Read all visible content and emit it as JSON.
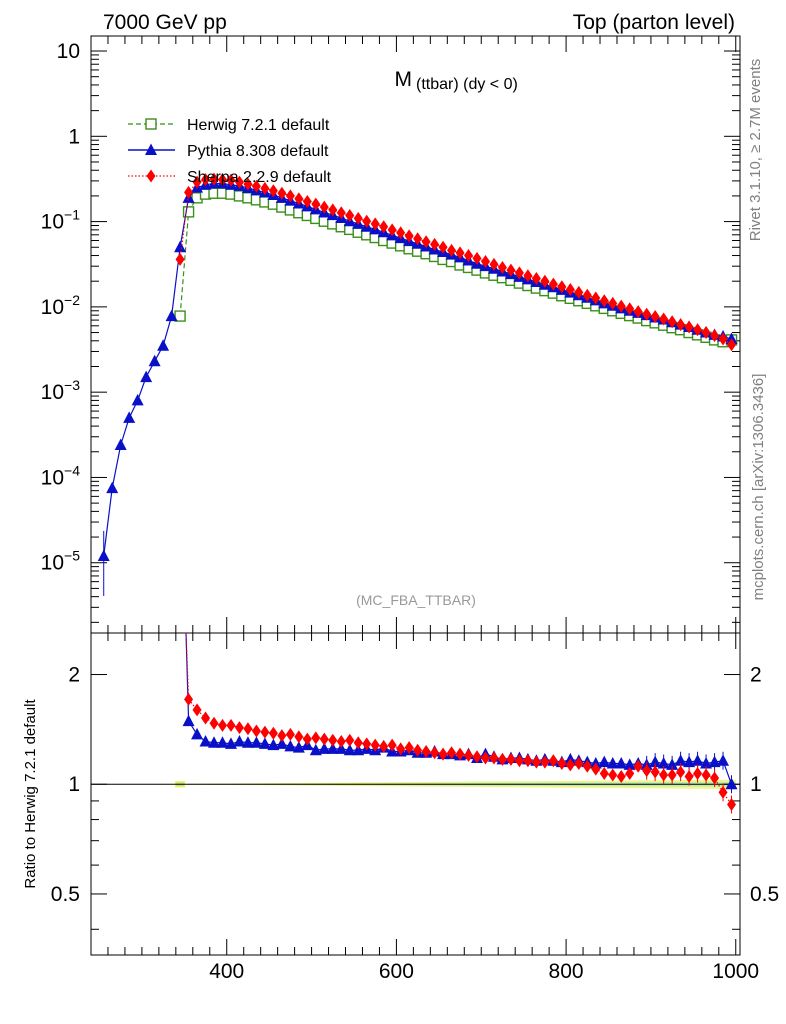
{
  "header": {
    "left": "7000 GeV pp",
    "right": "Top (parton level)"
  },
  "side_labels": {
    "rivet": "Rivet 3.1.10, ≥ 2.7M events",
    "mcplots": "mcplots.cern.ch [arXiv:1306.3436]"
  },
  "chart_data": [
    {
      "type": "line",
      "title_main": "M",
      "title_sub": "(ttbar)  (dy < 0)",
      "watermark": "(MC_FBA_TTBAR)",
      "xlabel": "",
      "ylabel": "",
      "xlim": [
        240,
        1005
      ],
      "ylim": [
        1.5e-06,
        15
      ],
      "yscale": "log",
      "y_tick_labels": [
        "10^-5",
        "10^-4",
        "10^-3",
        "10^-2",
        "10^-1",
        "1",
        "10"
      ],
      "legend_position": "top-left",
      "series": [
        {
          "name": "Herwig 7.2.1 default",
          "color": "#3a8f1a",
          "marker": "open-square",
          "x": [
            345,
            355,
            365,
            375,
            385,
            395,
            405,
            415,
            425,
            435,
            445,
            455,
            465,
            475,
            485,
            495,
            505,
            515,
            525,
            535,
            545,
            555,
            565,
            575,
            585,
            595,
            605,
            615,
            625,
            635,
            645,
            655,
            665,
            675,
            685,
            695,
            705,
            715,
            725,
            735,
            745,
            755,
            765,
            775,
            785,
            795,
            805,
            815,
            825,
            835,
            845,
            855,
            865,
            875,
            885,
            895,
            905,
            915,
            925,
            935,
            945,
            955,
            965,
            975,
            985,
            995
          ],
          "y": [
            0.0078,
            0.13,
            0.19,
            0.21,
            0.215,
            0.215,
            0.21,
            0.2,
            0.19,
            0.18,
            0.17,
            0.16,
            0.148,
            0.137,
            0.127,
            0.118,
            0.109,
            0.101,
            0.094,
            0.087,
            0.081,
            0.075,
            0.07,
            0.065,
            0.06,
            0.056,
            0.052,
            0.048,
            0.045,
            0.042,
            0.039,
            0.036,
            0.034,
            0.031,
            0.029,
            0.027,
            0.025,
            0.0235,
            0.022,
            0.0205,
            0.019,
            0.0178,
            0.0166,
            0.0155,
            0.0145,
            0.0135,
            0.0126,
            0.0118,
            0.011,
            0.0103,
            0.0096,
            0.009,
            0.0084,
            0.0079,
            0.0074,
            0.0069,
            0.0065,
            0.0061,
            0.0057,
            0.0054,
            0.005,
            0.0047,
            0.0044,
            0.0041,
            0.0039,
            0.0041
          ]
        },
        {
          "name": "Pythia 8.308 default",
          "color": "#0a10c8",
          "marker": "filled-triangle",
          "x": [
            255,
            265,
            275,
            285,
            295,
            305,
            315,
            325,
            335,
            345,
            355,
            365,
            375,
            385,
            395,
            405,
            415,
            425,
            435,
            445,
            455,
            465,
            475,
            485,
            495,
            505,
            515,
            525,
            535,
            545,
            555,
            565,
            575,
            585,
            595,
            605,
            615,
            625,
            635,
            645,
            655,
            665,
            675,
            685,
            695,
            705,
            715,
            725,
            735,
            745,
            755,
            765,
            775,
            785,
            795,
            805,
            815,
            825,
            835,
            845,
            855,
            865,
            875,
            885,
            895,
            905,
            915,
            925,
            935,
            945,
            955,
            965,
            975,
            985,
            995
          ],
          "y": [
            1.2e-05,
            7.5e-05,
            0.00024,
            0.0005,
            0.0008,
            0.0015,
            0.0023,
            0.0035,
            0.0078,
            0.05,
            0.19,
            0.25,
            0.27,
            0.28,
            0.28,
            0.27,
            0.262,
            0.248,
            0.233,
            0.22,
            0.205,
            0.19,
            0.176,
            0.163,
            0.151,
            0.139,
            0.128,
            0.119,
            0.11,
            0.101,
            0.094,
            0.087,
            0.081,
            0.075,
            0.069,
            0.064,
            0.059,
            0.055,
            0.051,
            0.047,
            0.044,
            0.041,
            0.038,
            0.035,
            0.032,
            0.03,
            0.028,
            0.026,
            0.0242,
            0.0225,
            0.021,
            0.0196,
            0.0182,
            0.017,
            0.0158,
            0.0147,
            0.0137,
            0.0128,
            0.0119,
            0.011,
            0.0103,
            0.0096,
            0.009,
            0.0085,
            0.008,
            0.0075,
            0.0071,
            0.0066,
            0.0062,
            0.0058,
            0.0054,
            0.005,
            0.0047,
            0.0045,
            0.0042
          ]
        },
        {
          "name": "Sherpa 2.2.9 default",
          "color": "#ff0000",
          "marker": "filled-diamond",
          "x": [
            345,
            355,
            365,
            375,
            385,
            395,
            405,
            415,
            425,
            435,
            445,
            455,
            465,
            475,
            485,
            495,
            505,
            515,
            525,
            535,
            545,
            555,
            565,
            575,
            585,
            595,
            605,
            615,
            625,
            635,
            645,
            655,
            665,
            675,
            685,
            695,
            705,
            715,
            725,
            735,
            745,
            755,
            765,
            775,
            785,
            795,
            805,
            815,
            825,
            835,
            845,
            855,
            865,
            875,
            885,
            895,
            905,
            915,
            925,
            935,
            945,
            955,
            965,
            975,
            985,
            995
          ],
          "y": [
            0.036,
            0.22,
            0.29,
            0.31,
            0.315,
            0.31,
            0.305,
            0.29,
            0.275,
            0.26,
            0.245,
            0.23,
            0.215,
            0.2,
            0.185,
            0.172,
            0.16,
            0.148,
            0.137,
            0.127,
            0.118,
            0.109,
            0.101,
            0.094,
            0.087,
            0.08,
            0.074,
            0.068,
            0.063,
            0.058,
            0.054,
            0.05,
            0.046,
            0.043,
            0.04,
            0.037,
            0.034,
            0.0315,
            0.029,
            0.027,
            0.025,
            0.0232,
            0.0215,
            0.02,
            0.0185,
            0.0172,
            0.016,
            0.0148,
            0.0137,
            0.0127,
            0.0118,
            0.011,
            0.0102,
            0.0095,
            0.0088,
            0.0082,
            0.0077,
            0.0072,
            0.0067,
            0.0062,
            0.0058,
            0.0054,
            0.005,
            0.0046,
            0.0042,
            0.0036
          ]
        }
      ]
    },
    {
      "type": "line",
      "ylabel": "Ratio to Herwig 7.2.1 default",
      "xlim": [
        240,
        1005
      ],
      "ylim": [
        0.34,
        2.6
      ],
      "yscale": "log",
      "x_tick_labels": [
        "400",
        "600",
        "800",
        "1000"
      ],
      "y_tick_labels": [
        "0.5",
        "1",
        "2"
      ],
      "reference_band": "Herwig 7.2.1 default",
      "series": [
        {
          "name": "Pythia 8.308 default",
          "color": "#0a10c8",
          "marker": "filled-triangle",
          "x": [
            355,
            365,
            375,
            385,
            395,
            405,
            415,
            425,
            435,
            445,
            455,
            465,
            475,
            485,
            495,
            505,
            515,
            525,
            535,
            545,
            555,
            565,
            575,
            585,
            595,
            605,
            615,
            625,
            635,
            645,
            655,
            665,
            675,
            685,
            695,
            705,
            715,
            725,
            735,
            745,
            755,
            765,
            775,
            785,
            795,
            805,
            815,
            825,
            835,
            845,
            855,
            865,
            875,
            885,
            895,
            905,
            915,
            925,
            935,
            945,
            955,
            965,
            975,
            985,
            995
          ],
          "y": [
            1.49,
            1.37,
            1.31,
            1.3,
            1.3,
            1.29,
            1.31,
            1.3,
            1.3,
            1.29,
            1.28,
            1.29,
            1.27,
            1.26,
            1.28,
            1.24,
            1.25,
            1.25,
            1.25,
            1.24,
            1.24,
            1.25,
            1.24,
            1.26,
            1.23,
            1.23,
            1.24,
            1.22,
            1.22,
            1.23,
            1.21,
            1.21,
            1.2,
            1.21,
            1.18,
            1.21,
            1.19,
            1.17,
            1.18,
            1.18,
            1.17,
            1.16,
            1.17,
            1.16,
            1.15,
            1.17,
            1.16,
            1.15,
            1.14,
            1.15,
            1.14,
            1.14,
            1.13,
            1.14,
            1.13,
            1.15,
            1.14,
            1.13,
            1.16,
            1.15,
            1.16,
            1.14,
            1.15,
            1.16,
            1.0
          ]
        },
        {
          "name": "Sherpa 2.2.9 default",
          "color": "#ff0000",
          "marker": "filled-diamond",
          "x": [
            355,
            365,
            375,
            385,
            395,
            405,
            415,
            425,
            435,
            445,
            455,
            465,
            475,
            485,
            495,
            505,
            515,
            525,
            535,
            545,
            555,
            565,
            575,
            585,
            595,
            605,
            615,
            625,
            635,
            645,
            655,
            665,
            675,
            685,
            695,
            705,
            715,
            725,
            735,
            745,
            755,
            765,
            775,
            785,
            795,
            805,
            815,
            825,
            835,
            845,
            855,
            865,
            875,
            885,
            895,
            905,
            915,
            925,
            935,
            945,
            955,
            965,
            975,
            985,
            995
          ],
          "y": [
            1.71,
            1.6,
            1.52,
            1.47,
            1.45,
            1.45,
            1.43,
            1.42,
            1.4,
            1.39,
            1.38,
            1.36,
            1.37,
            1.35,
            1.33,
            1.34,
            1.33,
            1.32,
            1.31,
            1.32,
            1.3,
            1.29,
            1.28,
            1.27,
            1.28,
            1.25,
            1.26,
            1.24,
            1.23,
            1.22,
            1.21,
            1.22,
            1.21,
            1.2,
            1.19,
            1.18,
            1.18,
            1.17,
            1.17,
            1.16,
            1.16,
            1.15,
            1.15,
            1.16,
            1.14,
            1.13,
            1.14,
            1.12,
            1.1,
            1.07,
            1.06,
            1.05,
            1.07,
            1.12,
            1.09,
            1.08,
            1.06,
            1.06,
            1.08,
            1.05,
            1.07,
            1.06,
            1.04,
            0.95,
            0.88
          ]
        }
      ]
    }
  ]
}
